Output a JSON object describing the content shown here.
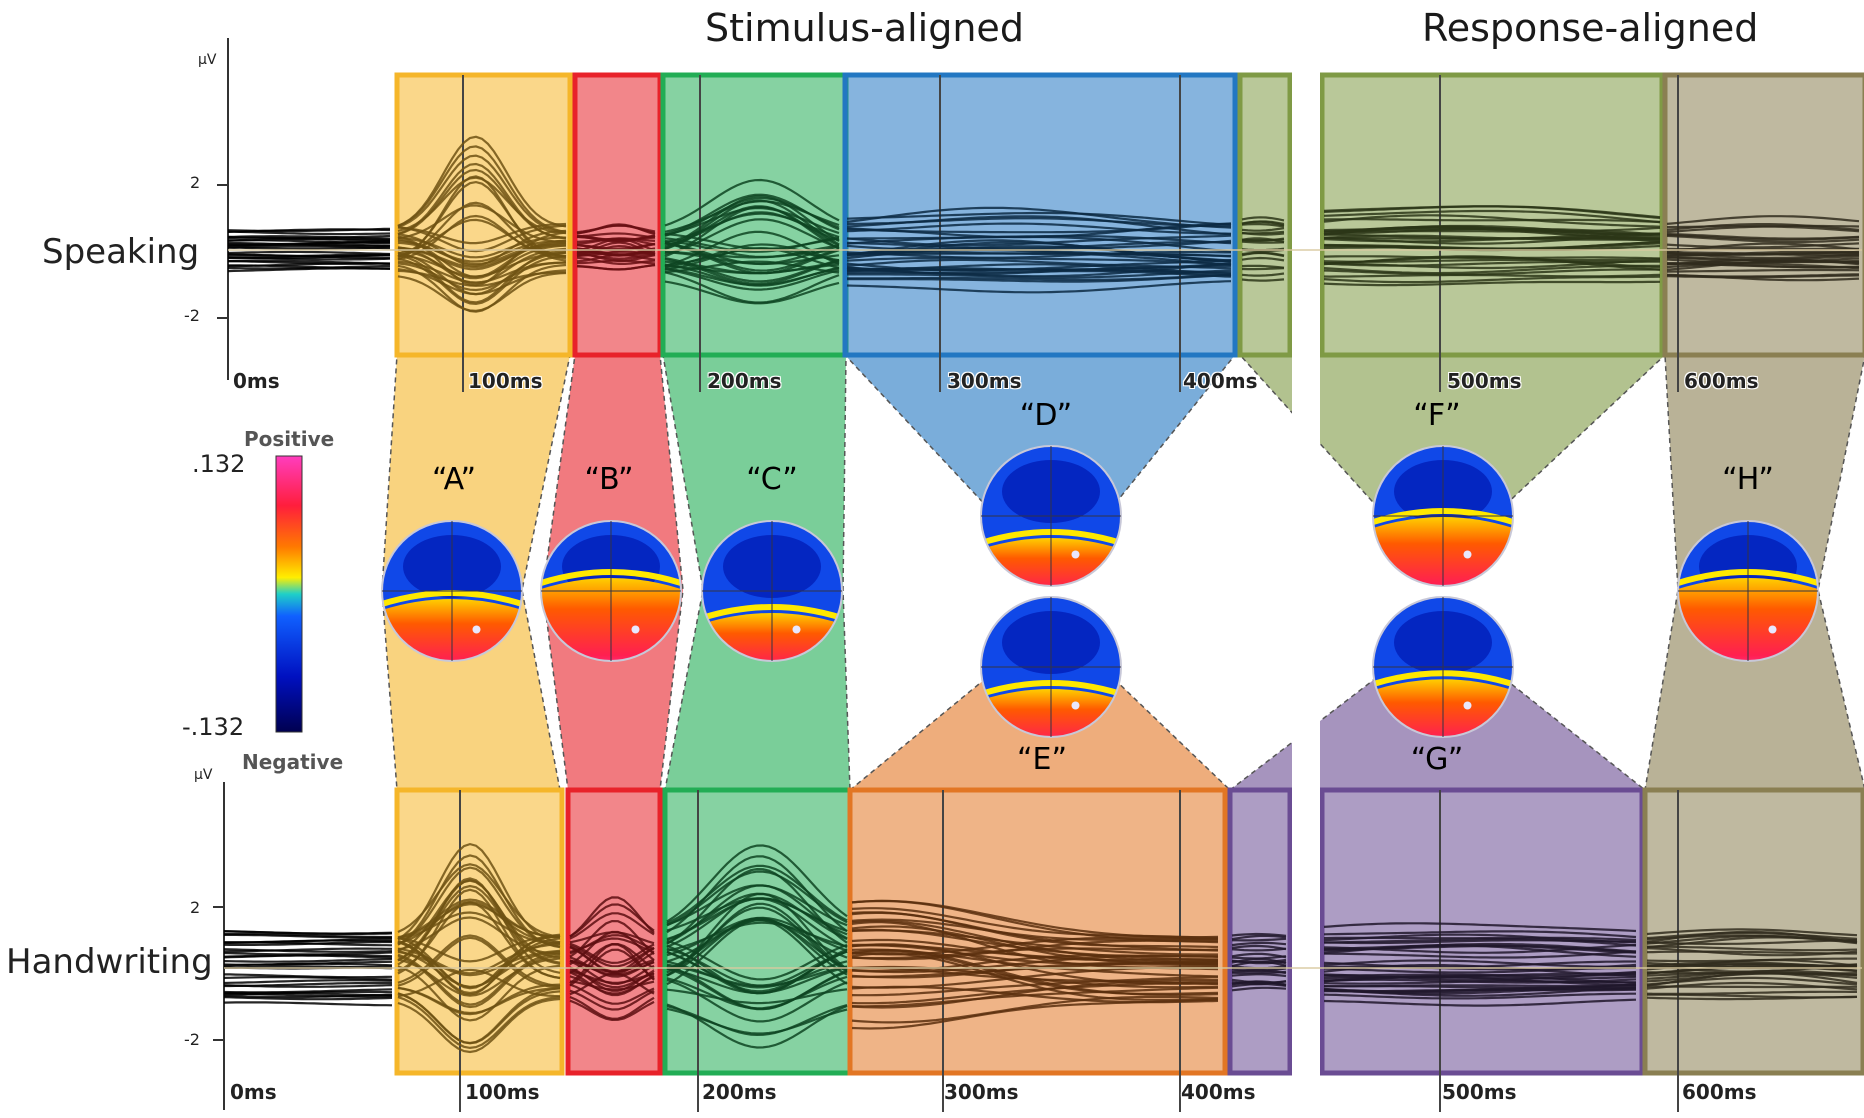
{
  "headers": {
    "stimulus": "Stimulus-aligned",
    "response": "Response-aligned"
  },
  "rows": {
    "top": "Speaking",
    "bottom": "Handwriting"
  },
  "axis": {
    "unit": "µV",
    "y_ticks": [
      "2",
      "-2"
    ]
  },
  "colorbar": {
    "max": ".132",
    "min": "-.132",
    "positive": "Positive",
    "negative": "Negative"
  },
  "colors": {
    "A": "#f5b62a",
    "B": "#e8222a",
    "C": "#22ad55",
    "D": "#2277c2",
    "E": "#e27624",
    "F": "#7f9a45",
    "G": "#6a4c93",
    "H": "#8a7f52"
  },
  "maps": [
    {
      "label": "“A”",
      "key": "A"
    },
    {
      "label": "“B”",
      "key": "B"
    },
    {
      "label": "“C”",
      "key": "C"
    },
    {
      "label": "“D”",
      "key": "D"
    },
    {
      "label": "“E”",
      "key": "E"
    },
    {
      "label": "“F”",
      "key": "F"
    },
    {
      "label": "“G”",
      "key": "G"
    },
    {
      "label": "“H”",
      "key": "H"
    }
  ],
  "chart_data": {
    "type": "line",
    "title": "",
    "xlabel": "",
    "ylabel": "µV",
    "ylim": [
      -2.5,
      2.5
    ],
    "x_tick_labels": [
      "0ms",
      "100ms",
      "200ms",
      "300ms",
      "400ms",
      "500ms",
      "600ms"
    ],
    "series": [
      {
        "name": "Speaking",
        "components": [
          {
            "label": "A",
            "start_ms": 70,
            "end_ms": 110
          },
          {
            "label": "B",
            "start_ms": 110,
            "end_ms": 130
          },
          {
            "label": "C",
            "start_ms": 130,
            "end_ms": 173
          },
          {
            "label": "D",
            "start_ms": 173,
            "end_ms": 410
          },
          {
            "label": "F",
            "start_ms": 415,
            "end_ms": 580
          },
          {
            "label": "H",
            "start_ms": 580,
            "end_ms": 620
          }
        ]
      },
      {
        "name": "Handwriting",
        "components": [
          {
            "label": "A",
            "start_ms": 70,
            "end_ms": 110
          },
          {
            "label": "B",
            "start_ms": 110,
            "end_ms": 133
          },
          {
            "label": "C",
            "start_ms": 133,
            "end_ms": 175
          },
          {
            "label": "E",
            "start_ms": 175,
            "end_ms": 410
          },
          {
            "label": "G",
            "start_ms": 410,
            "end_ms": 580
          },
          {
            "label": "H",
            "start_ms": 580,
            "end_ms": 620
          }
        ]
      }
    ]
  }
}
